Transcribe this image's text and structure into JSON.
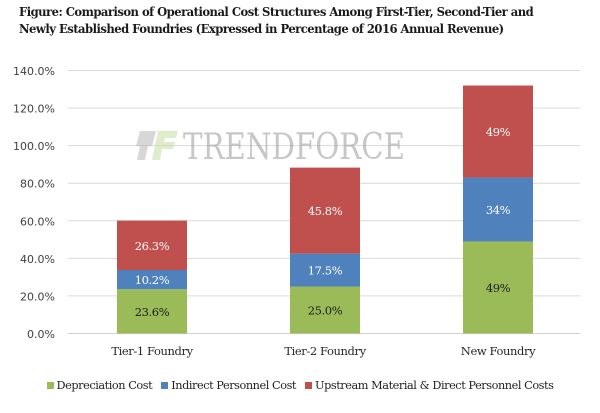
{
  "chart_data": {
    "type": "bar",
    "stacked": true,
    "title_lines": [
      "Figure: Comparison of Operational Cost Structures Among First-Tier, Second-Tier and",
      "Newly Established Foundries (Expressed in Percentage of  2016 Annual Revenue)"
    ],
    "categories": [
      "Tier-1 Foundry",
      "Tier-2 Foundry",
      "New Foundry"
    ],
    "series": [
      {
        "name": "Depreciation Cost",
        "color": "#9bbb59",
        "label_color": "#1a1a1a",
        "values": [
          23.6,
          25.0,
          49
        ],
        "labels": [
          "23.6%",
          "25.0%",
          "49%"
        ]
      },
      {
        "name": "Indirect Personnel Cost",
        "color": "#4f81bd",
        "label_color": "#ffffff",
        "values": [
          10.2,
          17.5,
          34
        ],
        "labels": [
          "10.2%",
          "17.5%",
          "34%"
        ]
      },
      {
        "name": "Upstream Material & Direct Personnel Costs",
        "color": "#c0504d",
        "label_color": "#ffffff",
        "values": [
          26.3,
          45.8,
          49
        ],
        "labels": [
          "26.3%",
          "45.8%",
          "49%"
        ]
      }
    ],
    "yticks": [
      "0.0%",
      "20.0%",
      "40.0%",
      "60.0%",
      "80.0%",
      "100.0%",
      "120.0%",
      "140.0%"
    ],
    "ytick_values": [
      0,
      20,
      40,
      60,
      80,
      100,
      120,
      140
    ],
    "ylim": [
      0,
      140
    ],
    "xlabel": "",
    "ylabel": "",
    "grid": true,
    "legend_position": "bottom",
    "watermark": "TRENDFORCE"
  }
}
